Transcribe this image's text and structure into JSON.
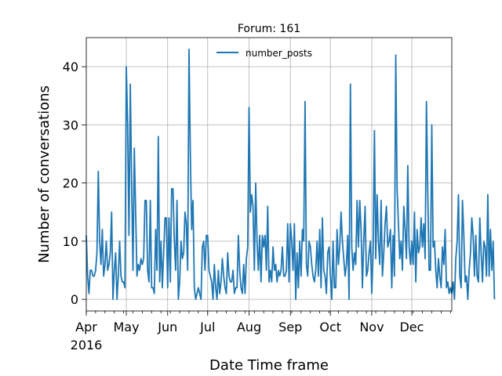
{
  "chart_data": {
    "type": "line",
    "title": "Forum: 161",
    "xlabel": "Date Time frame",
    "ylabel": "Number of conversations",
    "year_label": "2016",
    "x_range": [
      "2016-04-01",
      "2016-12-31"
    ],
    "ylim": [
      -2,
      45
    ],
    "yticks": [
      0,
      10,
      20,
      30,
      40
    ],
    "xticks": [
      {
        "date": "2016-04-01",
        "label": "Apr"
      },
      {
        "date": "2016-05-01",
        "label": "May"
      },
      {
        "date": "2016-06-01",
        "label": "Jun"
      },
      {
        "date": "2016-07-01",
        "label": "Jul"
      },
      {
        "date": "2016-08-01",
        "label": "Aug"
      },
      {
        "date": "2016-09-01",
        "label": "Sep"
      },
      {
        "date": "2016-10-01",
        "label": "Oct"
      },
      {
        "date": "2016-11-01",
        "label": "Nov"
      },
      {
        "date": "2016-12-01",
        "label": "Dec"
      }
    ],
    "grid": true,
    "legend_position": "top-center",
    "series": [
      {
        "name": "number_posts",
        "color": "#1f77b4",
        "start_date": "2016-04-01",
        "values": [
          11,
          4,
          1,
          5,
          5,
          4,
          4,
          5,
          8,
          22,
          10,
          6,
          12,
          4,
          6,
          10,
          5,
          6,
          8,
          15,
          0,
          5,
          8,
          0,
          4,
          10,
          4,
          3,
          3,
          2,
          40,
          30,
          11,
          37,
          20,
          5,
          26,
          15,
          4,
          6,
          5,
          7,
          6,
          7,
          17,
          17,
          5,
          3,
          17,
          2,
          2,
          1,
          12,
          5,
          28,
          3,
          10,
          2,
          8,
          14,
          14,
          2,
          14,
          3,
          19,
          19,
          10,
          5,
          17,
          0,
          3,
          10,
          7,
          8,
          15,
          13,
          5,
          43,
          25,
          12,
          17,
          2,
          0,
          1,
          2,
          1,
          0,
          9,
          10,
          5,
          11,
          11,
          5,
          4,
          3,
          0,
          6,
          2,
          0,
          5,
          1,
          3,
          7,
          4,
          2,
          1,
          8,
          4,
          3,
          3,
          5,
          1,
          2,
          2,
          11,
          5,
          2,
          1,
          6,
          1,
          7,
          9,
          33,
          15,
          18,
          16,
          5,
          20,
          10,
          5,
          11,
          3,
          11,
          9,
          11,
          5,
          16,
          3,
          5,
          3,
          9,
          5,
          6,
          3,
          5,
          4,
          5,
          9,
          4,
          4,
          5,
          13,
          3,
          13,
          10,
          5,
          13,
          0,
          8,
          2,
          10,
          4,
          12,
          10,
          34,
          6,
          4,
          10,
          9,
          6,
          4,
          3,
          5,
          10,
          4,
          12,
          2,
          14,
          5,
          4,
          1,
          8,
          9,
          4,
          0,
          10,
          2,
          2,
          12,
          6,
          9,
          15,
          10,
          7,
          4,
          6,
          11,
          0,
          37,
          9,
          5,
          8,
          6,
          17,
          9,
          17,
          12,
          2,
          10,
          16,
          4,
          5,
          8,
          10,
          1,
          8,
          29,
          7,
          18,
          10,
          6,
          17,
          4,
          8,
          13,
          16,
          9,
          10,
          12,
          2,
          11,
          4,
          42,
          19,
          13,
          7,
          10,
          5,
          16,
          12,
          7,
          23,
          9,
          6,
          10,
          6,
          15,
          3,
          12,
          8,
          9,
          14,
          9,
          13,
          7,
          34,
          18,
          5,
          5,
          30,
          9,
          10,
          5,
          2,
          7,
          4,
          2,
          9,
          6,
          12,
          2,
          3,
          1,
          2,
          1,
          3,
          0,
          7,
          10,
          18,
          4,
          2,
          17,
          11,
          3,
          4,
          0,
          5,
          8,
          14,
          11,
          4,
          11,
          4,
          3,
          14,
          8,
          3,
          10,
          9,
          4,
          18,
          4,
          12,
          5,
          10,
          0
        ]
      }
    ]
  }
}
